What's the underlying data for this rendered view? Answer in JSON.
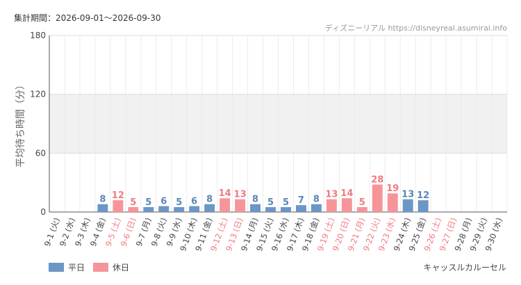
{
  "header": {
    "period": "集計期間：2026-09-01～2026-09-30",
    "credit": "ディズニーリアル https://disneyreal.asumirai.info"
  },
  "attraction": "キャッスルカルーセル",
  "legend": [
    {
      "name": "平日",
      "color": "#6b97c5"
    },
    {
      "name": "休日",
      "color": "#f5959a"
    }
  ],
  "chart_data": {
    "type": "bar",
    "ylabel": "平均待ち時間（分）",
    "ylim": [
      0,
      180
    ],
    "yticks": [
      0,
      60,
      120,
      180
    ],
    "shaded_band": [
      60,
      120
    ],
    "grid": true,
    "categories": [
      "9-1 (火)",
      "9-2 (水)",
      "9-3 (木)",
      "9-4 (金)",
      "9-5 (土)",
      "9-6 (日)",
      "9-7 (月)",
      "9-8 (火)",
      "9-9 (水)",
      "9-10 (木)",
      "9-11 (金)",
      "9-12 (土)",
      "9-13 (日)",
      "9-14 (月)",
      "9-15 (火)",
      "9-16 (水)",
      "9-17 (木)",
      "9-18 (金)",
      "9-19 (土)",
      "9-20 (日)",
      "9-21 (月)",
      "9-22 (火)",
      "9-23 (水)",
      "9-24 (木)",
      "9-25 (金)",
      "9-26 (土)",
      "9-27 (日)",
      "9-28 (月)",
      "9-29 (火)",
      "9-30 (水)"
    ],
    "day_type": [
      "平日",
      "平日",
      "平日",
      "平日",
      "休日",
      "休日",
      "平日",
      "平日",
      "平日",
      "平日",
      "平日",
      "休日",
      "休日",
      "平日",
      "平日",
      "平日",
      "平日",
      "平日",
      "休日",
      "休日",
      "休日",
      "休日",
      "休日",
      "平日",
      "平日",
      "休日",
      "休日",
      "平日",
      "平日",
      "平日"
    ],
    "values": [
      null,
      null,
      null,
      8,
      12,
      5,
      5,
      6,
      5,
      6,
      8,
      14,
      13,
      8,
      5,
      5,
      7,
      8,
      13,
      14,
      5,
      28,
      19,
      13,
      12,
      null,
      null,
      null,
      null,
      null
    ],
    "colors": {
      "weekday": "#6b97c5",
      "holiday": "#f5959a",
      "weekday_label": "#5b86b5",
      "holiday_label": "#f07a80"
    }
  }
}
